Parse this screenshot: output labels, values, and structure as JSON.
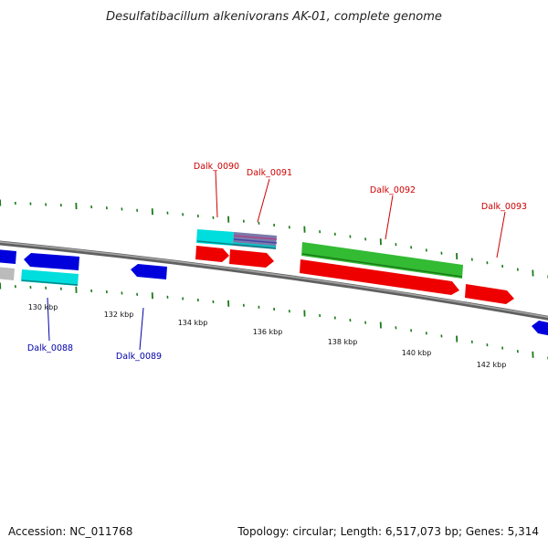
{
  "title": "Desulfatibacillum alkenivorans AK-01, complete genome",
  "footer": {
    "accession": "Accession: NC_011768",
    "summary": "Topology: circular; Length: 6,517,073 bp; Genes: 5,314"
  },
  "colors": {
    "backbone": "#808080",
    "ticks": "#1a7a1a",
    "forward_label": "#cc0000",
    "reverse_label": "#0000aa",
    "cds_red": "#ee0000",
    "cds_blue": "#0000dd",
    "cds_green": "#33bb33",
    "cds_cyan": "#00dddd",
    "cds_grey": "#bbbbbb"
  },
  "scale_labels": [
    "130 kbp",
    "132 kbp",
    "134 kbp",
    "136 kbp",
    "138 kbp",
    "140 kbp",
    "142 kbp"
  ],
  "genes_top": [
    {
      "name": "Dalk_0090"
    },
    {
      "name": "Dalk_0091"
    },
    {
      "name": "Dalk_0092"
    },
    {
      "name": "Dalk_0093"
    }
  ],
  "genes_bottom": [
    {
      "name": "Dalk_0088"
    },
    {
      "name": "Dalk_0089"
    }
  ]
}
